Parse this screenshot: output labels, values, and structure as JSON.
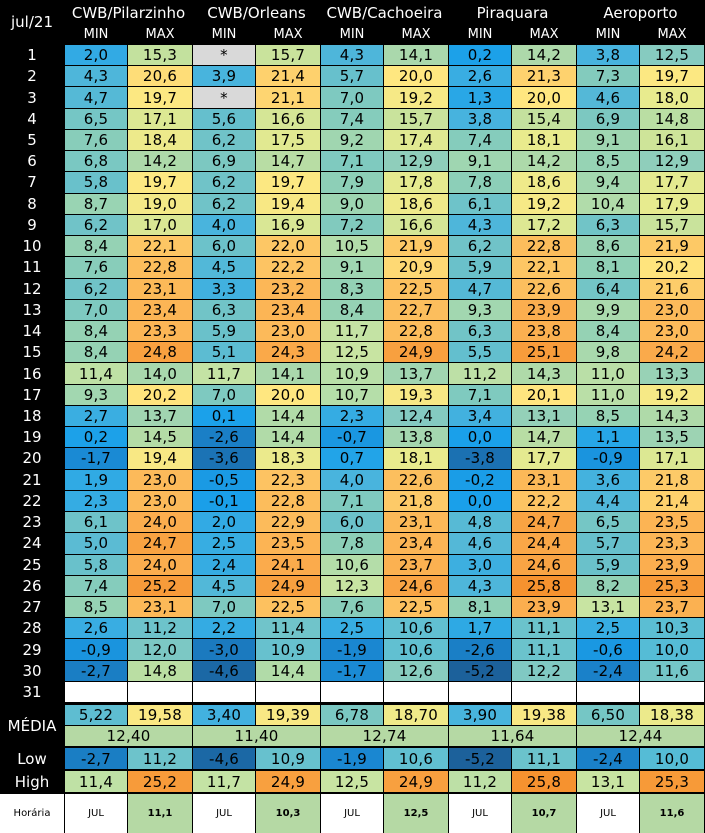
{
  "table_title": "jul/21",
  "stations": [
    "CWB/Pilarzinho",
    "CWB/Orleans",
    "CWB/Cachoeira",
    "Piraquara",
    "Aeroporto"
  ],
  "col_labels": [
    "MIN",
    "MAX"
  ],
  "days": [
    "1",
    "2",
    "3",
    "4",
    "5",
    "6",
    "7",
    "8",
    "9",
    "10",
    "11",
    "12",
    "13",
    "14",
    "15",
    "16",
    "17",
    "18",
    "19",
    "20",
    "21",
    "22",
    "23",
    "24",
    "25",
    "26",
    "27",
    "28",
    "29",
    "30",
    "31"
  ],
  "rows": [
    [
      "2,0",
      "15,3",
      "*",
      "15,7",
      "4,3",
      "14,1",
      "0,2",
      "14,2",
      "3,8",
      "12,5"
    ],
    [
      "4,3",
      "20,6",
      "3,9",
      "21,4",
      "5,7",
      "20,0",
      "2,6",
      "21,3",
      "7,3",
      "19,7"
    ],
    [
      "4,7",
      "19,7",
      "*",
      "21,1",
      "7,0",
      "19,2",
      "1,3",
      "20,0",
      "4,6",
      "18,0"
    ],
    [
      "6,5",
      "17,1",
      "5,6",
      "16,6",
      "7,4",
      "15,7",
      "3,8",
      "15,4",
      "6,9",
      "14,8"
    ],
    [
      "7,6",
      "18,4",
      "6,2",
      "17,5",
      "9,2",
      "17,4",
      "7,4",
      "18,1",
      "9,1",
      "16,1"
    ],
    [
      "6,8",
      "14,2",
      "6,9",
      "14,7",
      "7,1",
      "12,9",
      "9,1",
      "14,2",
      "8,5",
      "12,9"
    ],
    [
      "5,8",
      "19,7",
      "6,2",
      "19,7",
      "7,9",
      "17,8",
      "7,8",
      "18,6",
      "9,4",
      "17,7"
    ],
    [
      "8,7",
      "19,0",
      "6,2",
      "19,4",
      "9,0",
      "18,6",
      "6,1",
      "19,2",
      "10,4",
      "17,9"
    ],
    [
      "6,2",
      "17,0",
      "4,0",
      "16,9",
      "7,2",
      "16,6",
      "4,3",
      "17,2",
      "6,3",
      "15,7"
    ],
    [
      "8,4",
      "22,1",
      "6,0",
      "22,0",
      "10,5",
      "21,9",
      "6,2",
      "22,8",
      "8,6",
      "21,9"
    ],
    [
      "7,6",
      "22,8",
      "4,5",
      "22,2",
      "9,1",
      "20,9",
      "5,9",
      "22,1",
      "8,1",
      "20,2"
    ],
    [
      "6,2",
      "23,1",
      "3,3",
      "23,2",
      "8,3",
      "22,5",
      "4,7",
      "22,6",
      "6,4",
      "21,6"
    ],
    [
      "7,0",
      "23,4",
      "6,3",
      "23,4",
      "8,4",
      "22,7",
      "9,3",
      "23,9",
      "9,9",
      "23,0"
    ],
    [
      "8,4",
      "23,3",
      "5,9",
      "23,0",
      "11,7",
      "22,8",
      "6,3",
      "23,8",
      "8,4",
      "23,0"
    ],
    [
      "8,4",
      "24,8",
      "5,1",
      "24,3",
      "12,5",
      "24,9",
      "5,5",
      "25,1",
      "9,8",
      "24,2"
    ],
    [
      "11,4",
      "14,0",
      "11,7",
      "14,1",
      "10,9",
      "13,7",
      "11,2",
      "14,3",
      "11,0",
      "13,3"
    ],
    [
      "9,3",
      "20,2",
      "7,0",
      "20,0",
      "10,7",
      "19,3",
      "7,1",
      "20,1",
      "11,0",
      "19,2"
    ],
    [
      "2,7",
      "13,7",
      "0,1",
      "14,4",
      "2,3",
      "12,4",
      "3,4",
      "13,1",
      "8,5",
      "14,3"
    ],
    [
      "0,2",
      "14,5",
      "-2,6",
      "14,4",
      "-0,7",
      "13,8",
      "0,0",
      "14,7",
      "1,1",
      "13,5"
    ],
    [
      "-1,7",
      "19,4",
      "-3,6",
      "18,3",
      "0,7",
      "18,1",
      "-3,8",
      "17,7",
      "-0,9",
      "17,1"
    ],
    [
      "1,9",
      "23,0",
      "-0,5",
      "22,3",
      "4,0",
      "22,6",
      "-0,2",
      "23,1",
      "3,6",
      "21,8"
    ],
    [
      "2,3",
      "23,0",
      "-0,1",
      "22,8",
      "7,1",
      "21,8",
      "0,0",
      "22,2",
      "4,4",
      "21,4"
    ],
    [
      "6,1",
      "24,0",
      "2,0",
      "22,9",
      "6,0",
      "23,1",
      "4,8",
      "24,7",
      "6,5",
      "23,5"
    ],
    [
      "5,0",
      "24,7",
      "2,5",
      "23,5",
      "7,8",
      "23,4",
      "4,6",
      "24,4",
      "5,7",
      "23,3"
    ],
    [
      "5,8",
      "24,0",
      "2,4",
      "24,1",
      "10,6",
      "23,7",
      "3,0",
      "24,6",
      "5,9",
      "23,9"
    ],
    [
      "7,4",
      "25,2",
      "4,5",
      "24,9",
      "12,3",
      "24,6",
      "4,3",
      "25,8",
      "8,2",
      "25,3"
    ],
    [
      "8,5",
      "23,1",
      "7,0",
      "22,5",
      "7,6",
      "22,5",
      "8,1",
      "23,9",
      "13,1",
      "23,7"
    ],
    [
      "2,6",
      "11,2",
      "2,2",
      "11,4",
      "2,5",
      "10,6",
      "1,7",
      "11,1",
      "2,5",
      "10,3"
    ],
    [
      "-0,9",
      "12,0",
      "-3,0",
      "10,9",
      "-1,9",
      "10,6",
      "-2,6",
      "11,1",
      "-0,6",
      "10,0"
    ],
    [
      "-2,7",
      "14,8",
      "-4,6",
      "14,4",
      "-1,7",
      "12,6",
      "-5,2",
      "12,2",
      "-2,4",
      "11,6"
    ],
    [
      "",
      "",
      "",
      "",
      "",
      "",
      "",
      "",
      "",
      ""
    ]
  ],
  "media": {
    "label": "MÉDIA",
    "values": [
      "5,22",
      "19,58",
      "3,40",
      "19,39",
      "6,78",
      "18,70",
      "3,90",
      "19,38",
      "6,50",
      "18,38"
    ],
    "station_means": [
      "12,40",
      "11,40",
      "12,74",
      "11,64",
      "12,44"
    ]
  },
  "low": {
    "label": "Low",
    "values": [
      "-2,7",
      "11,2",
      "-4,6",
      "10,9",
      "-1,9",
      "10,6",
      "-5,2",
      "11,1",
      "-2,4",
      "10,0"
    ]
  },
  "high": {
    "label": "High",
    "values": [
      "11,4",
      "25,2",
      "11,7",
      "24,9",
      "12,5",
      "24,9",
      "11,2",
      "25,8",
      "13,1",
      "25,3"
    ]
  },
  "horaria": {
    "label": "Horária",
    "values": [
      "JUL",
      "11,1",
      "JUL",
      "10,3",
      "JUL",
      "12,5",
      "JUL",
      "10,7",
      "JUL",
      "11,6"
    ]
  },
  "colors": {
    "background": "#000000",
    "missing_cell": "#d9d9d9",
    "low_scale_cold": "#1f5f9c",
    "low_scale_mid": "#1e9be0",
    "low_scale_warm": "#bfe0a8",
    "high_scale_cool": "#5bbfd6",
    "high_scale_mid": "#ffe680",
    "high_scale_hot": "#f99a3c"
  }
}
